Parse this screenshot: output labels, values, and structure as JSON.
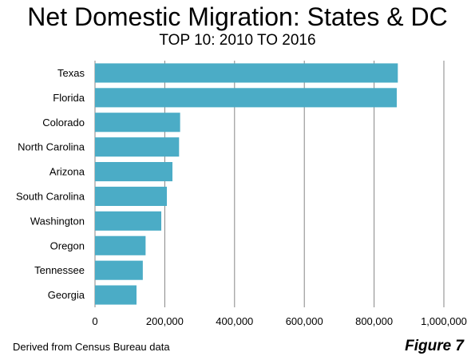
{
  "chart_data": {
    "type": "bar",
    "orientation": "horizontal",
    "title": "Net Domestic Migration: States & DC",
    "subtitle": "TOP 10: 2010 TO 2016",
    "categories": [
      "Texas",
      "Florida",
      "Colorado",
      "North Carolina",
      "Arizona",
      "South Carolina",
      "Washington",
      "Oregon",
      "Tennessee",
      "Georgia"
    ],
    "values": [
      868000,
      865000,
      244000,
      241000,
      222000,
      206000,
      190000,
      145000,
      137000,
      119000
    ],
    "xlim": [
      0,
      1000000
    ],
    "xticks": [
      "0",
      "200,000",
      "400,000",
      "600,000",
      "800,000",
      "1,000,000"
    ],
    "xtick_values": [
      0,
      200000,
      400000,
      600000,
      800000,
      1000000
    ],
    "grid": "vertical",
    "bar_color": "#4bacc6",
    "grid_color": "#868686"
  },
  "footer": {
    "source": "Derived from Census Bureau data",
    "figure": "Figure 7"
  }
}
